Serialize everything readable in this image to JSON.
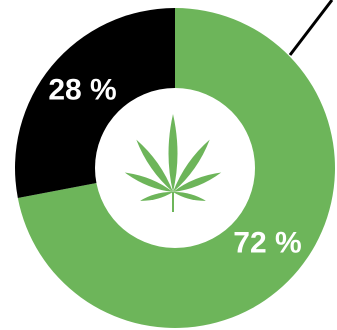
{
  "chart_data": {
    "type": "pie",
    "values": [
      72,
      28
    ],
    "value_labels": [
      "72 %",
      "28 %"
    ],
    "colors": [
      "#6db55a",
      "#000000"
    ]
  }
}
